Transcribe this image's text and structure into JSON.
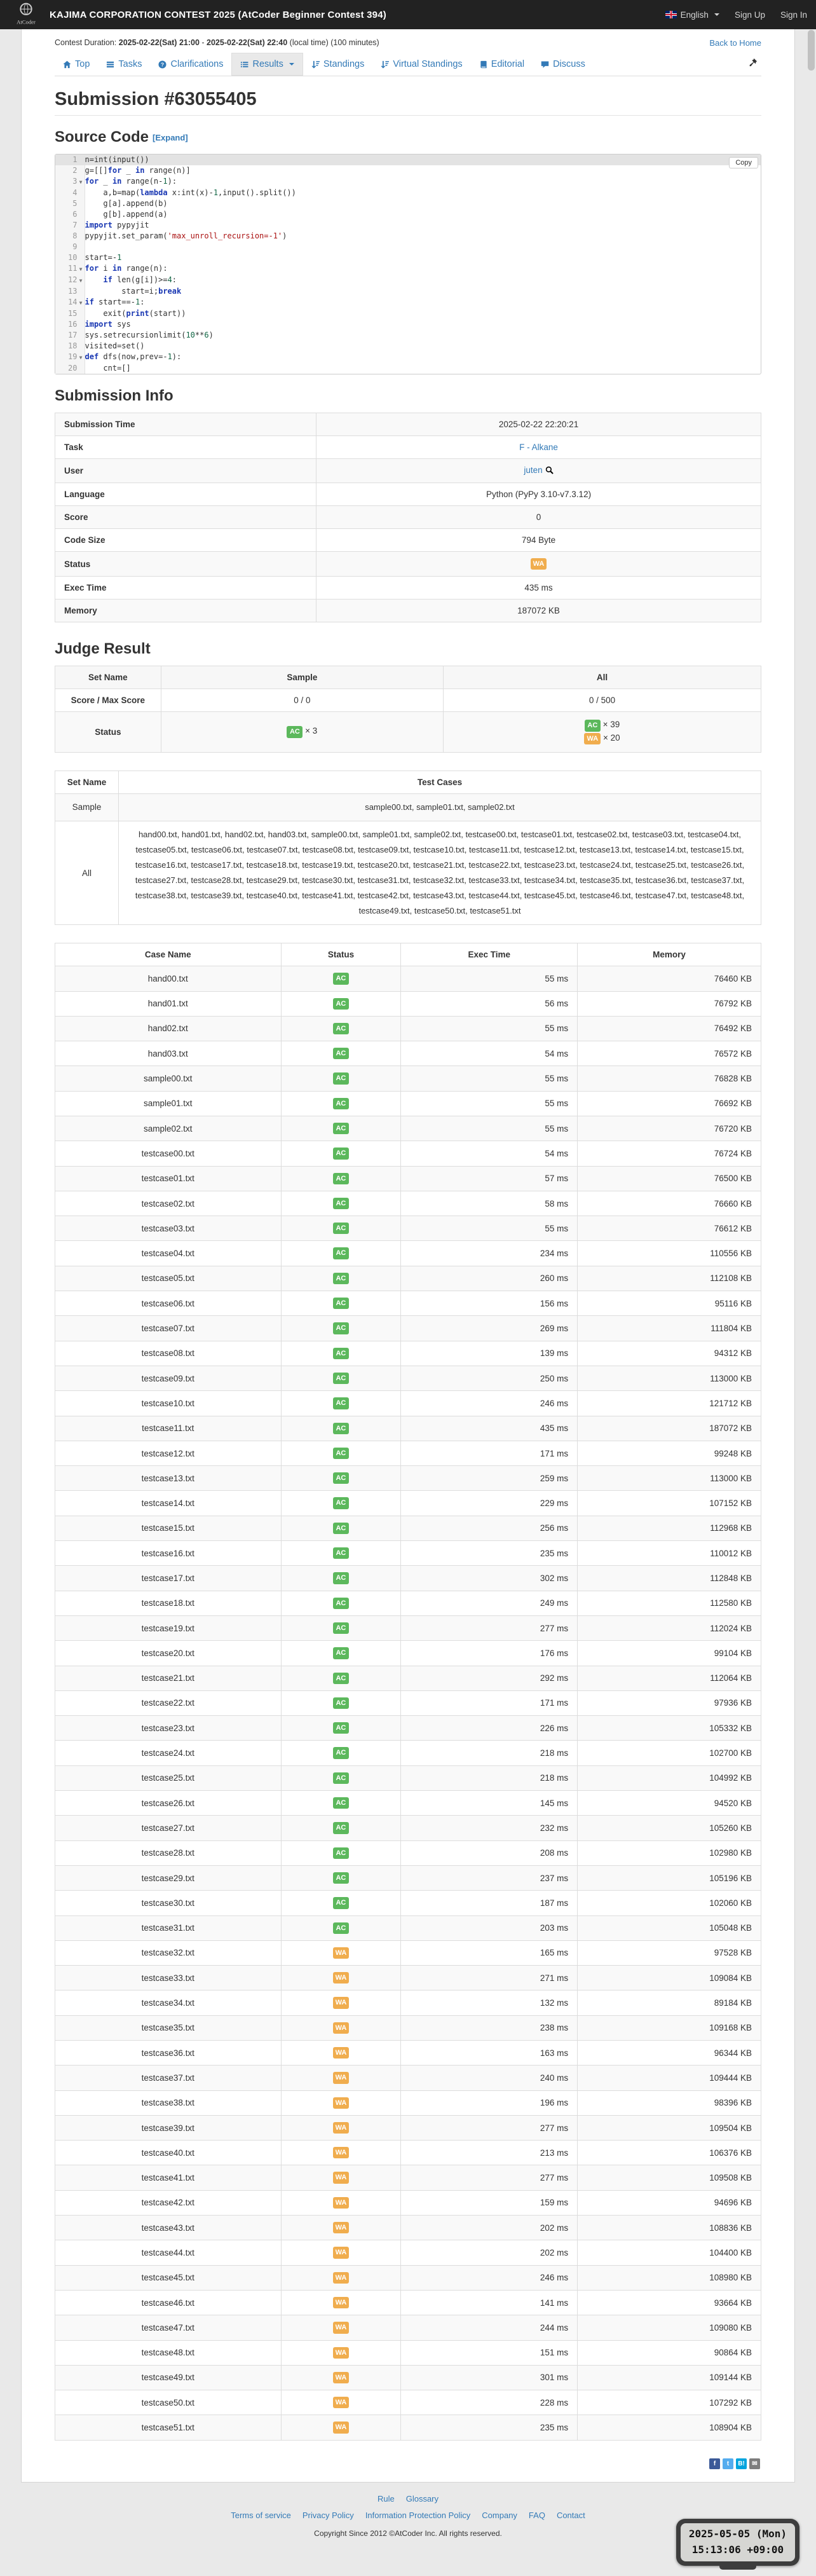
{
  "header": {
    "contest_title": "KAJIMA CORPORATION CONTEST 2025 (AtCoder Beginner Contest 394)",
    "language": "English",
    "sign_up": "Sign Up",
    "sign_in": "Sign In"
  },
  "contest_bar": {
    "label": "Contest Duration: ",
    "start": "2025-02-22(Sat) 21:00",
    "sep": " - ",
    "end": "2025-02-22(Sat) 22:40",
    "suffix": " (local time) (100 minutes)",
    "back_to_home": "Back to Home"
  },
  "nav": {
    "tabs": [
      {
        "label": "Top",
        "icon": "home",
        "active": false,
        "caret": false
      },
      {
        "label": "Tasks",
        "icon": "tasks",
        "active": false,
        "caret": false
      },
      {
        "label": "Clarifications",
        "icon": "question",
        "active": false,
        "caret": false
      },
      {
        "label": "Results",
        "icon": "results",
        "active": true,
        "caret": true
      },
      {
        "label": "Standings",
        "icon": "standings",
        "active": false,
        "caret": false
      },
      {
        "label": "Virtual Standings",
        "icon": "standings",
        "active": false,
        "caret": false
      },
      {
        "label": "Editorial",
        "icon": "book",
        "active": false,
        "caret": false
      },
      {
        "label": "Discuss",
        "icon": "comment",
        "active": false,
        "caret": false
      }
    ]
  },
  "page": {
    "title": "Submission #63055405"
  },
  "source": {
    "heading": "Source Code",
    "expand_label": "[Expand]",
    "copy_label": "Copy",
    "active_line": 1,
    "fold_lines": [
      3,
      11,
      12,
      14,
      19
    ],
    "lines": [
      "n=int(input())",
      "g=[[]for _ in range(n)]",
      "for _ in range(n-1):",
      "    a,b=map(lambda x:int(x)-1,input().split())",
      "    g[a].append(b)",
      "    g[b].append(a)",
      "import pypyjit",
      "pypyjit.set_param('max_unroll_recursion=-1')",
      "",
      "start=-1",
      "for i in range(n):",
      "    if len(g[i])>=4:",
      "        start=i;break",
      "if start==-1:",
      "    exit(print(start))",
      "import sys",
      "sys.setrecursionlimit(10**6)",
      "visited=set()",
      "def dfs(now,prev=-1):",
      "    cnt=[]"
    ]
  },
  "info": {
    "heading": "Submission Info",
    "rows": [
      {
        "label": "Submission Time",
        "value": "2025-02-22 22:20:21",
        "type": "text"
      },
      {
        "label": "Task",
        "value": "F - Alkane",
        "type": "link"
      },
      {
        "label": "User",
        "value": "juten",
        "type": "user"
      },
      {
        "label": "Language",
        "value": "Python (PyPy 3.10-v7.3.12)",
        "type": "text"
      },
      {
        "label": "Score",
        "value": "0",
        "type": "text"
      },
      {
        "label": "Code Size",
        "value": "794 Byte",
        "type": "text"
      },
      {
        "label": "Status",
        "value": "WA",
        "type": "badge"
      },
      {
        "label": "Exec Time",
        "value": "435 ms",
        "type": "text"
      },
      {
        "label": "Memory",
        "value": "187072 KB",
        "type": "text"
      }
    ]
  },
  "judge": {
    "heading": "Judge Result",
    "columns": [
      "Set Name",
      "Sample",
      "All"
    ],
    "score_row": {
      "label": "Score / Max Score",
      "values": [
        "0 / 0",
        "0 / 500"
      ]
    },
    "status_row": {
      "label": "Status",
      "cells": [
        [
          {
            "s": "AC",
            "n": "× 3"
          }
        ],
        [
          {
            "s": "AC",
            "n": "× 39"
          },
          {
            "s": "WA",
            "n": "× 20"
          }
        ]
      ]
    }
  },
  "sets": {
    "columns": [
      "Set Name",
      "Test Cases"
    ],
    "rows": [
      {
        "name": "Sample",
        "cases": "sample00.txt, sample01.txt, sample02.txt"
      },
      {
        "name": "All",
        "cases": "hand00.txt, hand01.txt, hand02.txt, hand03.txt, sample00.txt, sample01.txt, sample02.txt, testcase00.txt, testcase01.txt, testcase02.txt, testcase03.txt, testcase04.txt, testcase05.txt, testcase06.txt, testcase07.txt, testcase08.txt, testcase09.txt, testcase10.txt, testcase11.txt, testcase12.txt, testcase13.txt, testcase14.txt, testcase15.txt, testcase16.txt, testcase17.txt, testcase18.txt, testcase19.txt, testcase20.txt, testcase21.txt, testcase22.txt, testcase23.txt, testcase24.txt, testcase25.txt, testcase26.txt, testcase27.txt, testcase28.txt, testcase29.txt, testcase30.txt, testcase31.txt, testcase32.txt, testcase33.txt, testcase34.txt, testcase35.txt, testcase36.txt, testcase37.txt, testcase38.txt, testcase39.txt, testcase40.txt, testcase41.txt, testcase42.txt, testcase43.txt, testcase44.txt, testcase45.txt, testcase46.txt, testcase47.txt, testcase48.txt, testcase49.txt, testcase50.txt, testcase51.txt"
      }
    ]
  },
  "results": {
    "columns": [
      "Case Name",
      "Status",
      "Exec Time",
      "Memory"
    ],
    "rows": [
      [
        "hand00.txt",
        "AC",
        "55 ms",
        "76460 KB"
      ],
      [
        "hand01.txt",
        "AC",
        "56 ms",
        "76792 KB"
      ],
      [
        "hand02.txt",
        "AC",
        "55 ms",
        "76492 KB"
      ],
      [
        "hand03.txt",
        "AC",
        "54 ms",
        "76572 KB"
      ],
      [
        "sample00.txt",
        "AC",
        "55 ms",
        "76828 KB"
      ],
      [
        "sample01.txt",
        "AC",
        "55 ms",
        "76692 KB"
      ],
      [
        "sample02.txt",
        "AC",
        "55 ms",
        "76720 KB"
      ],
      [
        "testcase00.txt",
        "AC",
        "54 ms",
        "76724 KB"
      ],
      [
        "testcase01.txt",
        "AC",
        "57 ms",
        "76500 KB"
      ],
      [
        "testcase02.txt",
        "AC",
        "58 ms",
        "76660 KB"
      ],
      [
        "testcase03.txt",
        "AC",
        "55 ms",
        "76612 KB"
      ],
      [
        "testcase04.txt",
        "AC",
        "234 ms",
        "110556 KB"
      ],
      [
        "testcase05.txt",
        "AC",
        "260 ms",
        "112108 KB"
      ],
      [
        "testcase06.txt",
        "AC",
        "156 ms",
        "95116 KB"
      ],
      [
        "testcase07.txt",
        "AC",
        "269 ms",
        "111804 KB"
      ],
      [
        "testcase08.txt",
        "AC",
        "139 ms",
        "94312 KB"
      ],
      [
        "testcase09.txt",
        "AC",
        "250 ms",
        "113000 KB"
      ],
      [
        "testcase10.txt",
        "AC",
        "246 ms",
        "121712 KB"
      ],
      [
        "testcase11.txt",
        "AC",
        "435 ms",
        "187072 KB"
      ],
      [
        "testcase12.txt",
        "AC",
        "171 ms",
        "99248 KB"
      ],
      [
        "testcase13.txt",
        "AC",
        "259 ms",
        "113000 KB"
      ],
      [
        "testcase14.txt",
        "AC",
        "229 ms",
        "107152 KB"
      ],
      [
        "testcase15.txt",
        "AC",
        "256 ms",
        "112968 KB"
      ],
      [
        "testcase16.txt",
        "AC",
        "235 ms",
        "110012 KB"
      ],
      [
        "testcase17.txt",
        "AC",
        "302 ms",
        "112848 KB"
      ],
      [
        "testcase18.txt",
        "AC",
        "249 ms",
        "112580 KB"
      ],
      [
        "testcase19.txt",
        "AC",
        "277 ms",
        "112024 KB"
      ],
      [
        "testcase20.txt",
        "AC",
        "176 ms",
        "99104 KB"
      ],
      [
        "testcase21.txt",
        "AC",
        "292 ms",
        "112064 KB"
      ],
      [
        "testcase22.txt",
        "AC",
        "171 ms",
        "97936 KB"
      ],
      [
        "testcase23.txt",
        "AC",
        "226 ms",
        "105332 KB"
      ],
      [
        "testcase24.txt",
        "AC",
        "218 ms",
        "102700 KB"
      ],
      [
        "testcase25.txt",
        "AC",
        "218 ms",
        "104992 KB"
      ],
      [
        "testcase26.txt",
        "AC",
        "145 ms",
        "94520 KB"
      ],
      [
        "testcase27.txt",
        "AC",
        "232 ms",
        "105260 KB"
      ],
      [
        "testcase28.txt",
        "AC",
        "208 ms",
        "102980 KB"
      ],
      [
        "testcase29.txt",
        "AC",
        "237 ms",
        "105196 KB"
      ],
      [
        "testcase30.txt",
        "AC",
        "187 ms",
        "102060 KB"
      ],
      [
        "testcase31.txt",
        "AC",
        "203 ms",
        "105048 KB"
      ],
      [
        "testcase32.txt",
        "WA",
        "165 ms",
        "97528 KB"
      ],
      [
        "testcase33.txt",
        "WA",
        "271 ms",
        "109084 KB"
      ],
      [
        "testcase34.txt",
        "WA",
        "132 ms",
        "89184 KB"
      ],
      [
        "testcase35.txt",
        "WA",
        "238 ms",
        "109168 KB"
      ],
      [
        "testcase36.txt",
        "WA",
        "163 ms",
        "96344 KB"
      ],
      [
        "testcase37.txt",
        "WA",
        "240 ms",
        "109444 KB"
      ],
      [
        "testcase38.txt",
        "WA",
        "196 ms",
        "98396 KB"
      ],
      [
        "testcase39.txt",
        "WA",
        "277 ms",
        "109504 KB"
      ],
      [
        "testcase40.txt",
        "WA",
        "213 ms",
        "106376 KB"
      ],
      [
        "testcase41.txt",
        "WA",
        "277 ms",
        "109508 KB"
      ],
      [
        "testcase42.txt",
        "WA",
        "159 ms",
        "94696 KB"
      ],
      [
        "testcase43.txt",
        "WA",
        "202 ms",
        "108836 KB"
      ],
      [
        "testcase44.txt",
        "WA",
        "202 ms",
        "104400 KB"
      ],
      [
        "testcase45.txt",
        "WA",
        "246 ms",
        "108980 KB"
      ],
      [
        "testcase46.txt",
        "WA",
        "141 ms",
        "93664 KB"
      ],
      [
        "testcase47.txt",
        "WA",
        "244 ms",
        "109080 KB"
      ],
      [
        "testcase48.txt",
        "WA",
        "151 ms",
        "90864 KB"
      ],
      [
        "testcase49.txt",
        "WA",
        "301 ms",
        "109144 KB"
      ],
      [
        "testcase50.txt",
        "WA",
        "228 ms",
        "107292 KB"
      ],
      [
        "testcase51.txt",
        "WA",
        "235 ms",
        "108904 KB"
      ]
    ]
  },
  "share": [
    {
      "name": "facebook",
      "color": "#3b5998",
      "glyph": "f"
    },
    {
      "name": "twitter",
      "color": "#55acee",
      "glyph": "t"
    },
    {
      "name": "hatena",
      "color": "#00a4de",
      "glyph": "B!"
    },
    {
      "name": "mail",
      "color": "#7d7d7d",
      "glyph": "✉"
    }
  ],
  "footer": {
    "row1": [
      "Rule",
      "Glossary"
    ],
    "row2": [
      "Terms of service",
      "Privacy Policy",
      "Information Protection Policy",
      "Company",
      "FAQ",
      "Contact"
    ],
    "copyright": "Copyright Since 2012 ©AtCoder Inc. All rights reserved."
  },
  "clock": {
    "date": "2025-05-05 (Mon)",
    "time": "15:13:06 +09:00"
  },
  "colors": {
    "accent": "#337ab7",
    "ac": "#5cb85c",
    "wa": "#f0ad4e"
  }
}
